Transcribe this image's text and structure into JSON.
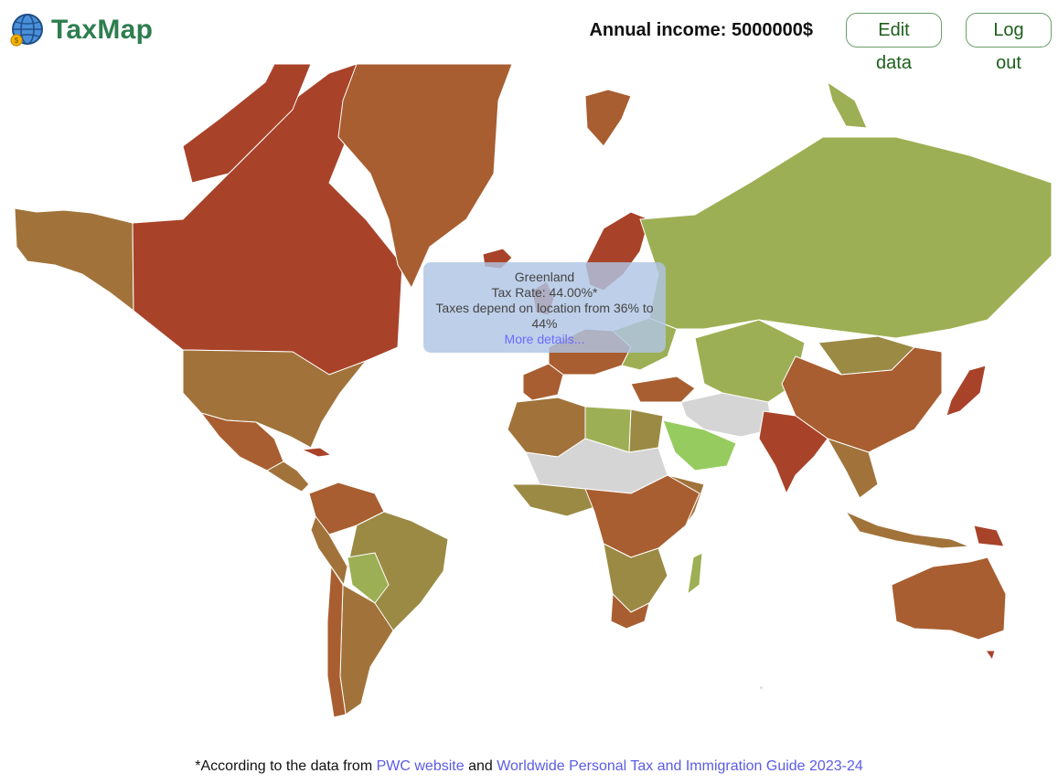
{
  "app": {
    "title": "TaxMap"
  },
  "header": {
    "income_text": "Annual income: 5000000$",
    "edit_label": "Edit data",
    "logout_label": "Log out"
  },
  "tooltip": {
    "country": "Greenland",
    "rate_text": "Tax Rate: 44.00%*",
    "range_text": "Taxes depend on location from 36% to 44%",
    "more_text": "More details..."
  },
  "footer": {
    "prefix": "*According to the data from ",
    "link1": "PWC website",
    "middle": " and ",
    "link2": "Worldwide Personal Tax and Immigration Guide 2023-24"
  },
  "colors": {
    "high_tax": "#a8432a",
    "upper_mid": "#a85e30",
    "mid": "#a1733a",
    "lower_mid": "#9b8a44",
    "low": "#9daf54",
    "very_low": "#96cc5f",
    "no_data": "#d6d5d6",
    "brand": "#2e7d4f",
    "link": "#5b5be6"
  }
}
